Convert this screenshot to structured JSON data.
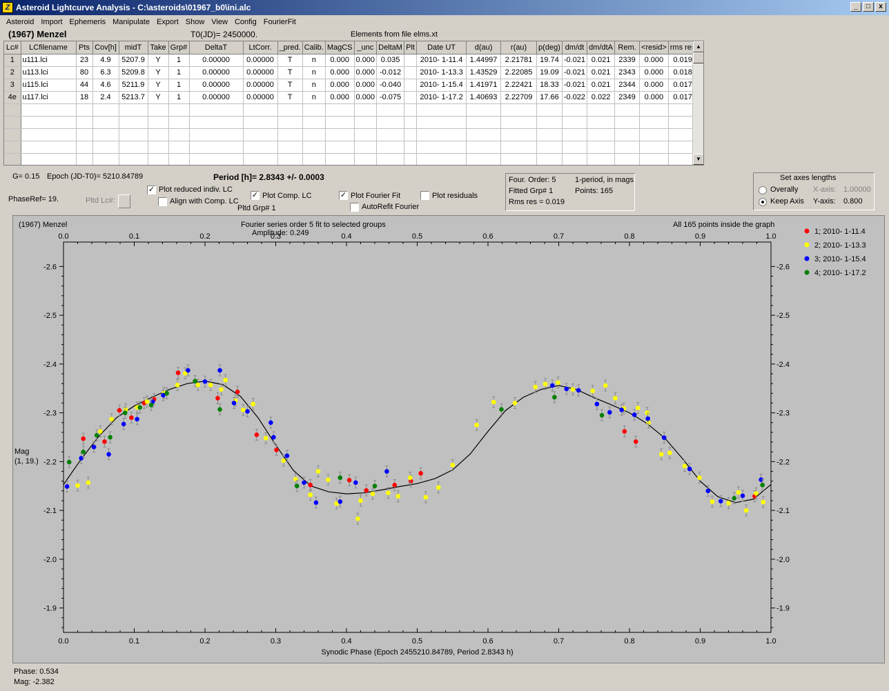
{
  "window": {
    "title": "Asteroid Lightcurve Analysis - C:\\asteroids\\01967_b0\\ini.alc",
    "controls": [
      "_",
      "□",
      "x"
    ]
  },
  "menu": [
    "Asteroid",
    "Import",
    "Ephemeris",
    "Manipulate",
    "Export",
    "Show",
    "View",
    "Config",
    "FourierFit"
  ],
  "header": {
    "asteroid": "(1967) Menzel",
    "t0": "T0(JD)= 2450000.",
    "elements": "Elements from file elms.xt"
  },
  "grid": {
    "columns": [
      "Lc#",
      "LCfilename",
      "Pts",
      "Cov[h]",
      "midT",
      "Take",
      "Grp#",
      "DeltaT",
      "LtCorr.",
      "_pred.",
      "Calib.",
      "MagCS",
      "_unc",
      "DeltaM",
      "Plt",
      "Date UT",
      "d(au)",
      "r(au)",
      "p(deg)",
      "dm/dt",
      "dm/dtA",
      "Rem.",
      "<resid>",
      "rms res"
    ],
    "rows": [
      [
        "1",
        "u111.lci",
        "23",
        "4.9",
        "5207.9",
        "Y",
        "1",
        "0.00000",
        "0.00000",
        "T",
        "n",
        "0.000",
        "0.000",
        "0.035",
        "",
        "2010- 1-11.4",
        "1.44997",
        "2.21781",
        "19.74",
        "-0.021",
        "0.021",
        "2339",
        "0.000",
        "0.019"
      ],
      [
        "2",
        "u113.lci",
        "80",
        "6.3",
        "5209.8",
        "Y",
        "1",
        "0.00000",
        "0.00000",
        "T",
        "n",
        "0.000",
        "0.000",
        "-0.012",
        "",
        "2010- 1-13.3",
        "1.43529",
        "2.22085",
        "19.09",
        "-0.021",
        "0.021",
        "2343",
        "0.000",
        "0.018"
      ],
      [
        "3",
        "u115.lci",
        "44",
        "4.6",
        "5211.9",
        "Y",
        "1",
        "0.00000",
        "0.00000",
        "T",
        "n",
        "0.000",
        "0.000",
        "-0.040",
        "",
        "2010- 1-15.4",
        "1.41971",
        "2.22421",
        "18.33",
        "-0.021",
        "0.021",
        "2344",
        "0.000",
        "0.017"
      ],
      [
        "4e",
        "u117.lci",
        "18",
        "2.4",
        "5213.7",
        "Y",
        "1",
        "0.00000",
        "0.00000",
        "T",
        "n",
        "0.000",
        "0.000",
        "-0.075",
        "",
        "2010- 1-17.2",
        "1.40693",
        "2.22709",
        "17.66",
        "-0.022",
        "0.022",
        "2349",
        "0.000",
        "0.017"
      ]
    ]
  },
  "controls": {
    "g": "G= 0.15",
    "epoch": "Epoch (JD-T0)= 5210.84789",
    "period": "Period [h]= 2.8343 +/- 0.0003",
    "phase_ref": "PhaseRef= 19.",
    "pltd_lc": "Pltd Lc#:",
    "pltd_grp": "Pltd Grp#  1",
    "plot_reduced": "Plot reduced indiv. LC",
    "align_comp": "Align with Comp. LC",
    "plot_comp": "Plot Comp. LC",
    "plot_fourier": "Plot Fourier Fit",
    "autorefit": "AutoRefit Fourier",
    "plot_residuals": "Plot residuals",
    "check_mark": "✓"
  },
  "fit_info": {
    "order": "Four. Order:  5",
    "mode": "1-period, in mags",
    "fitted_grp": "Fitted Grp# 1",
    "points": "Points: 165",
    "rms": "Rms res     = 0.019"
  },
  "axes_box": {
    "title": "Set axes lengths",
    "overally": "Overally",
    "keep_axis": "Keep Axis",
    "x_axis_label": "X-axis:",
    "x_axis_value": "1.00000",
    "y_axis_label": "Y-axis:",
    "y_axis_value": "0.800"
  },
  "plot": {
    "object": "(1967) Menzel",
    "fourier_title": "Fourier series order 5 fit to selected groups",
    "amplitude": "Amplitude: 0.249",
    "inside": "All 165 points inside the graph",
    "xlabel": "Synodic Phase (Epoch 2455210.84789, Period 2.8343 h)",
    "ylabel_1": "Mag",
    "ylabel_2": "(1, 19.)"
  },
  "status": {
    "phase": "Phase:  0.534",
    "mag": "Mag:    -2.382"
  },
  "chart_data": {
    "type": "scatter",
    "x_ticks": [
      "0.0",
      "0.1",
      "0.2",
      "0.3",
      "0.4",
      "0.5",
      "0.6",
      "0.7",
      "0.8",
      "0.9",
      "1.0"
    ],
    "y_ticks": [
      "-2.6",
      "-2.5",
      "-2.4",
      "-2.3",
      "-2.2",
      "-2.1",
      "-2.0",
      "-1.9"
    ],
    "xlim": [
      0,
      1
    ],
    "ylim": [
      -2.65,
      -1.85
    ],
    "y_inverted": true,
    "series": [
      {
        "name": "1; 2010- 1-11.4",
        "color": "#ff0000",
        "points": [
          [
            0.028,
            -2.247
          ],
          [
            0.058,
            -2.241
          ],
          [
            0.079,
            -2.305
          ],
          [
            0.096,
            -2.29
          ],
          [
            0.114,
            -2.32
          ],
          [
            0.128,
            -2.328
          ],
          [
            0.162,
            -2.382
          ],
          [
            0.218,
            -2.33
          ],
          [
            0.246,
            -2.343
          ],
          [
            0.273,
            -2.255
          ],
          [
            0.301,
            -2.224
          ],
          [
            0.349,
            -2.152
          ],
          [
            0.404,
            -2.162
          ],
          [
            0.428,
            -2.141
          ],
          [
            0.468,
            -2.152
          ],
          [
            0.491,
            -2.16
          ],
          [
            0.505,
            -2.176
          ],
          [
            0.793,
            -2.262
          ],
          [
            0.809,
            -2.241
          ],
          [
            0.977,
            -2.129
          ]
        ]
      },
      {
        "name": "2; 2010- 1-13.3",
        "color": "#ffff00",
        "points": [
          [
            0.02,
            -2.151
          ],
          [
            0.035,
            -2.157
          ],
          [
            0.052,
            -2.262
          ],
          [
            0.068,
            -2.287
          ],
          [
            0.088,
            -2.307
          ],
          [
            0.104,
            -2.311
          ],
          [
            0.118,
            -2.323
          ],
          [
            0.142,
            -2.341
          ],
          [
            0.161,
            -2.357
          ],
          [
            0.172,
            -2.381
          ],
          [
            0.19,
            -2.357
          ],
          [
            0.208,
            -2.357
          ],
          [
            0.223,
            -2.348
          ],
          [
            0.229,
            -2.367
          ],
          [
            0.243,
            -2.325
          ],
          [
            0.254,
            -2.306
          ],
          [
            0.268,
            -2.318
          ],
          [
            0.286,
            -2.248
          ],
          [
            0.311,
            -2.202
          ],
          [
            0.328,
            -2.164
          ],
          [
            0.349,
            -2.132
          ],
          [
            0.36,
            -2.18
          ],
          [
            0.374,
            -2.163
          ],
          [
            0.386,
            -2.114
          ],
          [
            0.416,
            -2.083
          ],
          [
            0.42,
            -2.12
          ],
          [
            0.437,
            -2.134
          ],
          [
            0.459,
            -2.136
          ],
          [
            0.473,
            -2.129
          ],
          [
            0.49,
            -2.167
          ],
          [
            0.512,
            -2.127
          ],
          [
            0.53,
            -2.147
          ],
          [
            0.55,
            -2.193
          ],
          [
            0.584,
            -2.275
          ],
          [
            0.608,
            -2.322
          ],
          [
            0.638,
            -2.32
          ],
          [
            0.667,
            -2.353
          ],
          [
            0.681,
            -2.359
          ],
          [
            0.699,
            -2.362
          ],
          [
            0.72,
            -2.348
          ],
          [
            0.748,
            -2.345
          ],
          [
            0.766,
            -2.356
          ],
          [
            0.78,
            -2.33
          ],
          [
            0.792,
            -2.309
          ],
          [
            0.812,
            -2.31
          ],
          [
            0.825,
            -2.3
          ],
          [
            0.827,
            -2.28
          ],
          [
            0.845,
            -2.215
          ],
          [
            0.857,
            -2.218
          ],
          [
            0.878,
            -2.191
          ],
          [
            0.899,
            -2.167
          ],
          [
            0.917,
            -2.118
          ],
          [
            0.94,
            -2.115
          ],
          [
            0.954,
            -2.137
          ],
          [
            0.965,
            -2.1
          ],
          [
            0.979,
            -2.135
          ],
          [
            0.989,
            -2.117
          ]
        ]
      },
      {
        "name": "3; 2010- 1-15.4",
        "color": "#0000ff",
        "points": [
          [
            0.005,
            -2.149
          ],
          [
            0.025,
            -2.207
          ],
          [
            0.043,
            -2.23
          ],
          [
            0.064,
            -2.215
          ],
          [
            0.085,
            -2.277
          ],
          [
            0.104,
            -2.287
          ],
          [
            0.126,
            -2.323
          ],
          [
            0.141,
            -2.336
          ],
          [
            0.176,
            -2.387
          ],
          [
            0.2,
            -2.364
          ],
          [
            0.221,
            -2.387
          ],
          [
            0.241,
            -2.32
          ],
          [
            0.26,
            -2.303
          ],
          [
            0.293,
            -2.28
          ],
          [
            0.297,
            -2.25
          ],
          [
            0.316,
            -2.212
          ],
          [
            0.34,
            -2.157
          ],
          [
            0.357,
            -2.116
          ],
          [
            0.391,
            -2.118
          ],
          [
            0.413,
            -2.157
          ],
          [
            0.457,
            -2.18
          ],
          [
            0.691,
            -2.356
          ],
          [
            0.711,
            -2.349
          ],
          [
            0.728,
            -2.346
          ],
          [
            0.754,
            -2.318
          ],
          [
            0.772,
            -2.301
          ],
          [
            0.789,
            -2.306
          ],
          [
            0.807,
            -2.296
          ],
          [
            0.826,
            -2.288
          ],
          [
            0.849,
            -2.249
          ],
          [
            0.885,
            -2.185
          ],
          [
            0.911,
            -2.14
          ],
          [
            0.929,
            -2.119
          ],
          [
            0.96,
            -2.13
          ],
          [
            0.986,
            -2.163
          ]
        ]
      },
      {
        "name": "4; 2010- 1-17.2",
        "color": "#008000",
        "points": [
          [
            0.008,
            -2.199
          ],
          [
            0.028,
            -2.22
          ],
          [
            0.047,
            -2.254
          ],
          [
            0.066,
            -2.25
          ],
          [
            0.087,
            -2.3
          ],
          [
            0.108,
            -2.311
          ],
          [
            0.124,
            -2.316
          ],
          [
            0.146,
            -2.34
          ],
          [
            0.186,
            -2.365
          ],
          [
            0.221,
            -2.307
          ],
          [
            0.33,
            -2.15
          ],
          [
            0.391,
            -2.167
          ],
          [
            0.44,
            -2.15
          ],
          [
            0.619,
            -2.307
          ],
          [
            0.694,
            -2.332
          ],
          [
            0.761,
            -2.295
          ],
          [
            0.948,
            -2.125
          ],
          [
            0.988,
            -2.152
          ]
        ]
      }
    ],
    "fit_curve": [
      [
        0.0,
        -2.153
      ],
      [
        0.025,
        -2.205
      ],
      [
        0.05,
        -2.252
      ],
      [
        0.075,
        -2.29
      ],
      [
        0.1,
        -2.314
      ],
      [
        0.125,
        -2.332
      ],
      [
        0.15,
        -2.348
      ],
      [
        0.175,
        -2.36
      ],
      [
        0.2,
        -2.365
      ],
      [
        0.225,
        -2.358
      ],
      [
        0.25,
        -2.334
      ],
      [
        0.275,
        -2.29
      ],
      [
        0.3,
        -2.234
      ],
      [
        0.325,
        -2.182
      ],
      [
        0.35,
        -2.15
      ],
      [
        0.375,
        -2.138
      ],
      [
        0.4,
        -2.134
      ],
      [
        0.425,
        -2.136
      ],
      [
        0.45,
        -2.142
      ],
      [
        0.475,
        -2.149
      ],
      [
        0.5,
        -2.155
      ],
      [
        0.525,
        -2.165
      ],
      [
        0.55,
        -2.183
      ],
      [
        0.575,
        -2.216
      ],
      [
        0.6,
        -2.262
      ],
      [
        0.625,
        -2.305
      ],
      [
        0.65,
        -2.332
      ],
      [
        0.675,
        -2.348
      ],
      [
        0.7,
        -2.356
      ],
      [
        0.725,
        -2.348
      ],
      [
        0.75,
        -2.331
      ],
      [
        0.775,
        -2.316
      ],
      [
        0.8,
        -2.3
      ],
      [
        0.825,
        -2.278
      ],
      [
        0.85,
        -2.248
      ],
      [
        0.875,
        -2.206
      ],
      [
        0.9,
        -2.16
      ],
      [
        0.925,
        -2.128
      ],
      [
        0.95,
        -2.116
      ],
      [
        0.975,
        -2.123
      ],
      [
        1.0,
        -2.153
      ]
    ]
  }
}
